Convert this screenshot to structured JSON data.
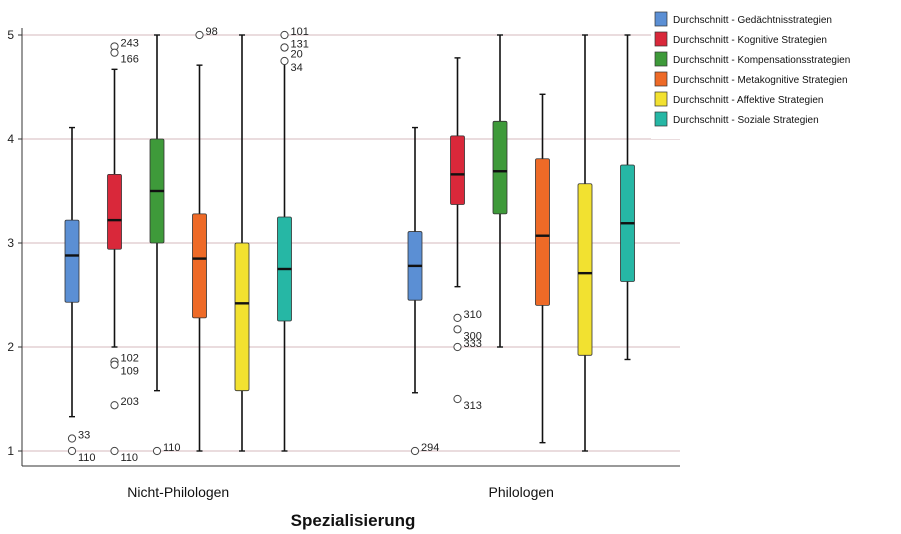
{
  "chart_data": {
    "type": "boxplot",
    "xlabel": "Spezialisierung",
    "ylabel": "",
    "ylim": [
      1,
      5
    ],
    "yticks": [
      1,
      2,
      3,
      4,
      5
    ],
    "grid": true,
    "legend_position": "top-right",
    "categories": [
      "Nicht-Philologen",
      "Philologen"
    ],
    "series": [
      {
        "name": "Durchschnitt - Gedächtnisstrategien",
        "color": "#5b8fd4",
        "boxes": [
          {
            "whisker_low": 1.33,
            "q1": 2.43,
            "median": 2.88,
            "q3": 3.22,
            "whisker_high": 4.11,
            "outliers": [
              {
                "value": 1.12,
                "label": "33"
              },
              {
                "value": 1.0,
                "label": "110"
              }
            ]
          },
          {
            "whisker_low": 1.56,
            "q1": 2.45,
            "median": 2.78,
            "q3": 3.11,
            "whisker_high": 4.11,
            "outliers": [
              {
                "value": 1.0,
                "label": "294"
              }
            ]
          }
        ]
      },
      {
        "name": "Durchschnitt - Kognitive Strategien",
        "color": "#d9283a",
        "boxes": [
          {
            "whisker_low": 2.0,
            "q1": 2.94,
            "median": 3.22,
            "q3": 3.66,
            "whisker_high": 4.67,
            "outliers": [
              {
                "value": 4.89,
                "label": "243"
              },
              {
                "value": 4.83,
                "label": "166"
              },
              {
                "value": 1.86,
                "label": "102"
              },
              {
                "value": 1.83,
                "label": "109"
              },
              {
                "value": 1.44,
                "label": "203"
              },
              {
                "value": 1.0,
                "label": "110"
              }
            ]
          },
          {
            "whisker_low": 2.58,
            "q1": 3.37,
            "median": 3.66,
            "q3": 4.03,
            "whisker_high": 4.78,
            "outliers": [
              {
                "value": 2.28,
                "label": "310"
              },
              {
                "value": 2.17,
                "label": "300"
              },
              {
                "value": 2.0,
                "label": "333"
              },
              {
                "value": 1.5,
                "label": "313"
              }
            ]
          }
        ]
      },
      {
        "name": "Durchschnitt - Kompensationsstrategien",
        "color": "#3e9a3a",
        "boxes": [
          {
            "whisker_low": 1.58,
            "q1": 3.0,
            "median": 3.5,
            "q3": 4.0,
            "whisker_high": 5.0,
            "outliers": [
              {
                "value": 1.0,
                "label": "110"
              }
            ]
          },
          {
            "whisker_low": 2.0,
            "q1": 3.28,
            "median": 3.69,
            "q3": 4.17,
            "whisker_high": 5.0,
            "outliers": []
          }
        ]
      },
      {
        "name": "Durchschnitt - Metakognitive Strategien",
        "color": "#ee6a27",
        "boxes": [
          {
            "whisker_low": 1.0,
            "q1": 2.28,
            "median": 2.85,
            "q3": 3.28,
            "whisker_high": 4.71,
            "outliers": [
              {
                "value": 5.0,
                "label": "98"
              }
            ]
          },
          {
            "whisker_low": 1.08,
            "q1": 2.4,
            "median": 3.07,
            "q3": 3.81,
            "whisker_high": 4.43,
            "outliers": []
          }
        ]
      },
      {
        "name": "Durchschnitt - Affektive Strategien",
        "color": "#f2e130",
        "boxes": [
          {
            "whisker_low": 1.0,
            "q1": 1.58,
            "median": 2.42,
            "q3": 3.0,
            "whisker_high": 5.0,
            "outliers": []
          },
          {
            "whisker_low": 1.0,
            "q1": 1.92,
            "median": 2.71,
            "q3": 3.57,
            "whisker_high": 5.0,
            "outliers": []
          }
        ]
      },
      {
        "name": "Durchschnitt - Soziale Strategien",
        "color": "#26b7a5",
        "boxes": [
          {
            "whisker_low": 1.0,
            "q1": 2.25,
            "median": 2.75,
            "q3": 3.25,
            "whisker_high": 4.75,
            "outliers": [
              {
                "value": 5.0,
                "label": "101"
              },
              {
                "value": 4.88,
                "label": "20"
              },
              {
                "value": 4.88,
                "label": "131"
              },
              {
                "value": 4.75,
                "label": "34"
              }
            ]
          },
          {
            "whisker_low": 1.88,
            "q1": 2.63,
            "median": 3.19,
            "q3": 3.75,
            "whisker_high": 5.0,
            "outliers": []
          }
        ]
      }
    ]
  }
}
